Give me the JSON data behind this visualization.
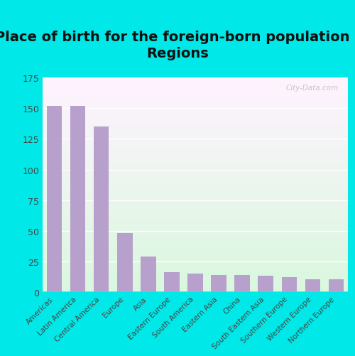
{
  "title": "Place of birth for the foreign-born population -\nRegions",
  "categories": [
    "Americas",
    "Latin America",
    "Central America",
    "Europe",
    "Asia",
    "Eastern Europe",
    "South America",
    "Eastern Asia",
    "China",
    "South Eastern Asia",
    "Southern Europe",
    "Western Europe",
    "Northern Europe"
  ],
  "values": [
    152,
    152,
    135,
    48,
    29,
    16,
    15,
    14,
    14,
    13,
    12,
    10,
    10
  ],
  "bar_color": "#b8a0cc",
  "background_outer": "#00e8e8",
  "title_fontsize": 14,
  "tick_fontsize": 7.5,
  "ytick_fontsize": 9,
  "ylim": [
    0,
    175
  ],
  "yticks": [
    0,
    25,
    50,
    75,
    100,
    125,
    150,
    175
  ],
  "watermark_text": "City-Data.com",
  "grid_color": "#cccccc"
}
